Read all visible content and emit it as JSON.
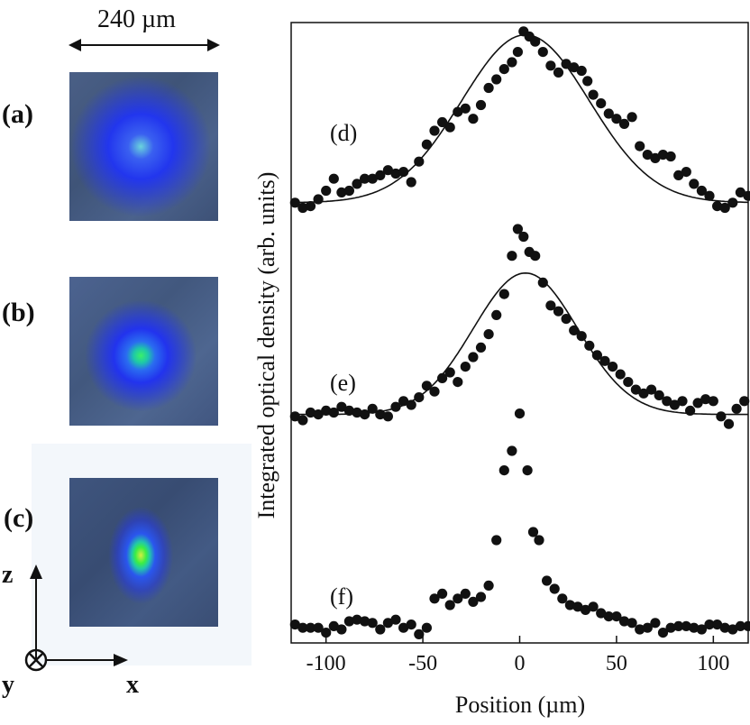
{
  "scale_bar_label": "240 µm",
  "image_panels": [
    {
      "label": "(a)",
      "core_color": "#5ac8d8",
      "mid_color": "#2233ee"
    },
    {
      "label": "(b)",
      "core_color": "#44ee66",
      "mid_color": "#2233ee"
    },
    {
      "label": "(c)",
      "core_color": "#44ee44",
      "mid_color": "#2233ee"
    }
  ],
  "coord_axes": {
    "z": "z",
    "x": "x",
    "y": "y"
  },
  "chart_data": {
    "type": "scatter",
    "xlabel": "Position (µm)",
    "ylabel": "Integrated optical density (arb. units)",
    "xlim": [
      -118,
      118
    ],
    "x_ticks": [
      -100,
      -50,
      0,
      50,
      100
    ],
    "grid": false,
    "series": [
      {
        "name": "(d)",
        "fit": {
          "type": "gaussian",
          "center": 3,
          "sigma": 33,
          "baseline": 0.08,
          "amplitude": 0.98
        },
        "points": [
          [
            -116,
            0.08
          ],
          [
            -112,
            0.05
          ],
          [
            -108,
            0.06
          ],
          [
            -104,
            0.1
          ],
          [
            -100,
            0.15
          ],
          [
            -96,
            0.22
          ],
          [
            -92,
            0.14
          ],
          [
            -88,
            0.15
          ],
          [
            -84,
            0.19
          ],
          [
            -80,
            0.22
          ],
          [
            -76,
            0.22
          ],
          [
            -72,
            0.24
          ],
          [
            -68,
            0.27
          ],
          [
            -64,
            0.25
          ],
          [
            -60,
            0.26
          ],
          [
            -56,
            0.2
          ],
          [
            -52,
            0.32
          ],
          [
            -48,
            0.42
          ],
          [
            -44,
            0.5
          ],
          [
            -40,
            0.55
          ],
          [
            -36,
            0.52
          ],
          [
            -32,
            0.61
          ],
          [
            -28,
            0.63
          ],
          [
            -24,
            0.57
          ],
          [
            -20,
            0.65
          ],
          [
            -16,
            0.75
          ],
          [
            -12,
            0.8
          ],
          [
            -8,
            0.86
          ],
          [
            -4,
            0.9
          ],
          [
            -1,
            0.96
          ],
          [
            2,
            1.08
          ],
          [
            5,
            1.05
          ],
          [
            8,
            1.02
          ],
          [
            12,
            0.96
          ],
          [
            16,
            0.88
          ],
          [
            20,
            0.84
          ],
          [
            24,
            0.89
          ],
          [
            28,
            0.87
          ],
          [
            32,
            0.85
          ],
          [
            35,
            0.79
          ],
          [
            38,
            0.71
          ],
          [
            42,
            0.66
          ],
          [
            46,
            0.6
          ],
          [
            50,
            0.57
          ],
          [
            54,
            0.54
          ],
          [
            58,
            0.58
          ],
          [
            62,
            0.41
          ],
          [
            66,
            0.36
          ],
          [
            70,
            0.34
          ],
          [
            74,
            0.36
          ],
          [
            78,
            0.35
          ],
          [
            82,
            0.24
          ],
          [
            86,
            0.26
          ],
          [
            90,
            0.19
          ],
          [
            94,
            0.15
          ],
          [
            98,
            0.12
          ],
          [
            102,
            0.06
          ],
          [
            106,
            0.05
          ],
          [
            110,
            0.08
          ],
          [
            114,
            0.14
          ],
          [
            118,
            0.12
          ]
        ]
      },
      {
        "name": "(e)",
        "fit": {
          "type": "gaussian",
          "center": 3,
          "sigma": 27,
          "baseline": 0.03,
          "amplitude": 0.74
        },
        "points": [
          [
            -116,
            0.02
          ],
          [
            -112,
            0.0
          ],
          [
            -108,
            0.04
          ],
          [
            -104,
            0.03
          ],
          [
            -100,
            0.05
          ],
          [
            -96,
            0.04
          ],
          [
            -92,
            0.07
          ],
          [
            -88,
            0.05
          ],
          [
            -84,
            0.04
          ],
          [
            -80,
            0.03
          ],
          [
            -76,
            0.06
          ],
          [
            -72,
            0.03
          ],
          [
            -68,
            0.02
          ],
          [
            -64,
            0.07
          ],
          [
            -60,
            0.1
          ],
          [
            -56,
            0.08
          ],
          [
            -52,
            0.12
          ],
          [
            -48,
            0.18
          ],
          [
            -44,
            0.15
          ],
          [
            -40,
            0.22
          ],
          [
            -36,
            0.25
          ],
          [
            -32,
            0.2
          ],
          [
            -28,
            0.28
          ],
          [
            -24,
            0.33
          ],
          [
            -20,
            0.38
          ],
          [
            -16,
            0.45
          ],
          [
            -12,
            0.55
          ],
          [
            -8,
            0.66
          ],
          [
            -4,
            0.86
          ],
          [
            -1,
            1.0
          ],
          [
            2,
            0.96
          ],
          [
            5,
            0.88
          ],
          [
            8,
            0.86
          ],
          [
            12,
            0.72
          ],
          [
            16,
            0.6
          ],
          [
            20,
            0.57
          ],
          [
            24,
            0.53
          ],
          [
            28,
            0.47
          ],
          [
            32,
            0.44
          ],
          [
            36,
            0.39
          ],
          [
            40,
            0.34
          ],
          [
            44,
            0.31
          ],
          [
            48,
            0.28
          ],
          [
            52,
            0.24
          ],
          [
            56,
            0.2
          ],
          [
            60,
            0.16
          ],
          [
            64,
            0.14
          ],
          [
            68,
            0.16
          ],
          [
            72,
            0.13
          ],
          [
            76,
            0.1
          ],
          [
            80,
            0.08
          ],
          [
            84,
            0.1
          ],
          [
            88,
            0.05
          ],
          [
            92,
            0.09
          ],
          [
            96,
            0.11
          ],
          [
            100,
            0.1
          ],
          [
            104,
            0.02
          ],
          [
            108,
            -0.02
          ],
          [
            112,
            0.06
          ],
          [
            116,
            0.1
          ]
        ]
      },
      {
        "name": "(f)",
        "points": [
          [
            -116,
            0.03
          ],
          [
            -112,
            0.01
          ],
          [
            -108,
            0.01
          ],
          [
            -104,
            0.01
          ],
          [
            -100,
            -0.02
          ],
          [
            -96,
            0.02
          ],
          [
            -92,
            0.0
          ],
          [
            -88,
            0.05
          ],
          [
            -84,
            0.06
          ],
          [
            -80,
            0.05
          ],
          [
            -76,
            0.04
          ],
          [
            -72,
            0.0
          ],
          [
            -68,
            0.04
          ],
          [
            -64,
            0.06
          ],
          [
            -60,
            0.01
          ],
          [
            -56,
            0.03
          ],
          [
            -52,
            -0.03
          ],
          [
            -48,
            0.01
          ],
          [
            -44,
            0.19
          ],
          [
            -40,
            0.22
          ],
          [
            -36,
            0.15
          ],
          [
            -32,
            0.19
          ],
          [
            -28,
            0.22
          ],
          [
            -24,
            0.17
          ],
          [
            -20,
            0.2
          ],
          [
            -16,
            0.27
          ],
          [
            -12,
            0.55
          ],
          [
            -8,
            0.98
          ],
          [
            -4,
            1.1
          ],
          [
            0,
            1.33
          ],
          [
            4,
            0.98
          ],
          [
            7,
            0.6
          ],
          [
            10,
            0.55
          ],
          [
            14,
            0.3
          ],
          [
            18,
            0.25
          ],
          [
            22,
            0.19
          ],
          [
            26,
            0.15
          ],
          [
            30,
            0.14
          ],
          [
            34,
            0.12
          ],
          [
            38,
            0.14
          ],
          [
            42,
            0.1
          ],
          [
            46,
            0.08
          ],
          [
            50,
            0.08
          ],
          [
            54,
            0.05
          ],
          [
            58,
            0.04
          ],
          [
            62,
            0.0
          ],
          [
            66,
            0.01
          ],
          [
            70,
            0.04
          ],
          [
            74,
            -0.02
          ],
          [
            78,
            0.01
          ],
          [
            82,
            0.02
          ],
          [
            86,
            0.02
          ],
          [
            90,
            0.01
          ],
          [
            94,
            0.0
          ],
          [
            98,
            0.03
          ],
          [
            102,
            0.03
          ],
          [
            106,
            0.01
          ],
          [
            110,
            0.0
          ],
          [
            114,
            0.02
          ],
          [
            118,
            0.02
          ]
        ]
      }
    ]
  }
}
